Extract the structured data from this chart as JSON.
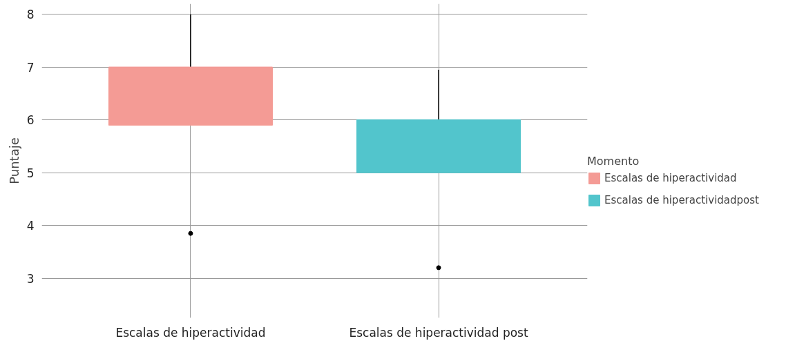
{
  "chart_data": {
    "type": "box",
    "ylabel": "Puntaje",
    "legend_title": "Momento",
    "categories": [
      "Escalas de hiperactividad",
      "Escalas de hiperactividad post"
    ],
    "series": [
      {
        "name": "Escalas de hiperactividad",
        "color": "#f49b95",
        "boxes": [
          {
            "low": 5.9,
            "q1": 5.9,
            "median": 7,
            "q3": 7,
            "high": 8,
            "outliers": [
              3.85
            ]
          },
          null
        ]
      },
      {
        "name": "Escalas de hiperactividadpost",
        "color": "#52c5cc",
        "boxes": [
          null,
          {
            "low": 5,
            "q1": 5,
            "median": 6,
            "q3": 6,
            "high": 6.95,
            "outliers": [
              3.2
            ]
          }
        ]
      }
    ],
    "ylim": [
      2.25,
      8.2
    ],
    "yticks": [
      3,
      4,
      5,
      6,
      7,
      8
    ],
    "grid": true,
    "legend": "right"
  }
}
